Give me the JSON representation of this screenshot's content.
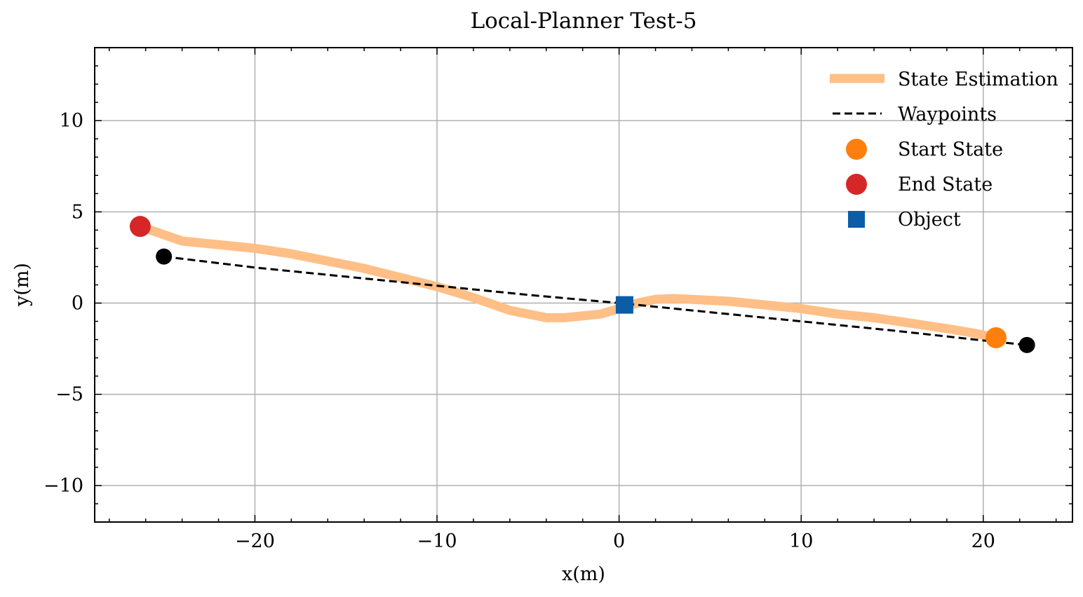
{
  "chart_data": {
    "type": "line",
    "title": "Local-Planner Test-5",
    "xlabel": "x(m)",
    "ylabel": "y(m)",
    "xlim": [
      -28.8,
      24.9
    ],
    "ylim": [
      -12.0,
      14.0
    ],
    "xticks": [
      -20,
      -10,
      0,
      10,
      20
    ],
    "yticks": [
      -10,
      -5,
      0,
      5,
      10
    ],
    "grid": true,
    "legend_position": "top-right",
    "colors": {
      "state": "#ffbf86",
      "waypoints": "#000000",
      "start": "#ff7f0e",
      "end": "#d62728",
      "object": "#0c5da5",
      "grid": "#b0b0b0"
    },
    "series": [
      {
        "name": "State Estimation",
        "x": [
          -26.3,
          -24.0,
          -22.0,
          -20.0,
          -18.0,
          -16.0,
          -14.0,
          -12.0,
          -10.0,
          -8.0,
          -6.0,
          -4.0,
          -3.0,
          -2.0,
          -1.0,
          0.0,
          1.0,
          2.0,
          3.0,
          4.0,
          6.0,
          8.0,
          10.0,
          12.0,
          14.0,
          16.0,
          18.0,
          19.5,
          20.7
        ],
        "y": [
          4.2,
          3.4,
          3.2,
          3.0,
          2.7,
          2.3,
          1.9,
          1.4,
          0.9,
          0.3,
          -0.4,
          -0.8,
          -0.8,
          -0.7,
          -0.6,
          -0.3,
          0.0,
          0.2,
          0.25,
          0.2,
          0.1,
          -0.1,
          -0.3,
          -0.6,
          -0.8,
          -1.1,
          -1.4,
          -1.65,
          -1.9
        ]
      },
      {
        "name": "Waypoints",
        "x": [
          -25.0,
          -20.0,
          -15.0,
          -10.0,
          -5.0,
          0.0,
          5.0,
          10.0,
          15.0,
          20.0,
          22.4
        ],
        "y": [
          2.55,
          1.95,
          1.45,
          0.95,
          0.45,
          0.0,
          -0.5,
          -1.0,
          -1.5,
          -2.05,
          -2.3
        ]
      },
      {
        "name": "Start State",
        "x": [
          20.7
        ],
        "y": [
          -1.9
        ]
      },
      {
        "name": "End State",
        "x": [
          -26.3
        ],
        "y": [
          4.2
        ]
      },
      {
        "name": "Object",
        "x": [
          0.3
        ],
        "y": [
          -0.1
        ]
      }
    ],
    "waypoint_endpoints": {
      "x": [
        -25.0,
        22.4
      ],
      "y": [
        2.55,
        -2.3
      ]
    }
  }
}
